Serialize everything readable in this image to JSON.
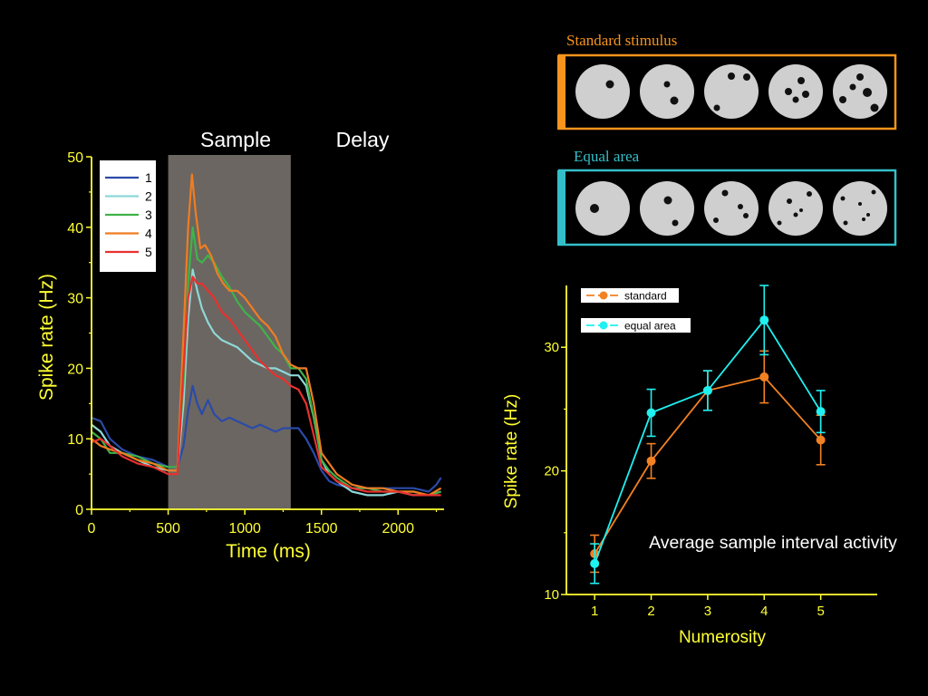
{
  "colors": {
    "background": "#000000",
    "axis": "#ffff33",
    "sample_shade": "#6b6661",
    "standard_border": "#f7941d",
    "equal_border": "#33bfc9",
    "disk": "#cfcfcf",
    "orange": "#f28123",
    "cyan": "#1ff0f0"
  },
  "timecourse": {
    "period_labels": {
      "sample": "Sample",
      "delay": "Delay"
    },
    "sample_window": [
      500,
      1300
    ],
    "legend": [
      "1",
      "2",
      "3",
      "4",
      "5"
    ]
  },
  "stimuli": {
    "standard_title": "Standard stimulus",
    "equal_title": "Equal area"
  },
  "annotation": "Average sample interval activity",
  "chart_data": [
    {
      "type": "line",
      "xlabel": "Time (ms)",
      "ylabel": "Spike rate (Hz)",
      "xlim": [
        0,
        2300
      ],
      "ylim": [
        0,
        50
      ],
      "x_ticks": [
        "0",
        "500",
        "1000",
        "1500",
        "2000"
      ],
      "y_ticks": [
        "0",
        "10",
        "20",
        "30",
        "40",
        "50"
      ],
      "legend_position": "top-left",
      "series": [
        {
          "name": "1",
          "color": "#2b4aa8",
          "points": [
            [
              0,
              13
            ],
            [
              60,
              12.5
            ],
            [
              120,
              10
            ],
            [
              200,
              8.5
            ],
            [
              300,
              7.5
            ],
            [
              400,
              7
            ],
            [
              500,
              6
            ],
            [
              560,
              6
            ],
            [
              600,
              9
            ],
            [
              630,
              14
            ],
            [
              660,
              17.5
            ],
            [
              690,
              15
            ],
            [
              720,
              13.5
            ],
            [
              760,
              15.5
            ],
            [
              800,
              13.5
            ],
            [
              850,
              12.5
            ],
            [
              900,
              13
            ],
            [
              950,
              12.5
            ],
            [
              1000,
              12
            ],
            [
              1050,
              11.5
            ],
            [
              1100,
              12
            ],
            [
              1150,
              11.5
            ],
            [
              1200,
              11
            ],
            [
              1250,
              11.5
            ],
            [
              1300,
              11.5
            ],
            [
              1350,
              11.5
            ],
            [
              1400,
              10
            ],
            [
              1450,
              8
            ],
            [
              1500,
              5.5
            ],
            [
              1550,
              4
            ],
            [
              1600,
              3.5
            ],
            [
              1700,
              3
            ],
            [
              1800,
              3
            ],
            [
              1900,
              3
            ],
            [
              2000,
              3
            ],
            [
              2100,
              3
            ],
            [
              2200,
              2.5
            ],
            [
              2250,
              3.5
            ],
            [
              2280,
              4.5
            ]
          ]
        },
        {
          "name": "2",
          "color": "#8ed8d8",
          "points": [
            [
              0,
              12
            ],
            [
              60,
              11
            ],
            [
              120,
              9
            ],
            [
              200,
              8
            ],
            [
              300,
              7
            ],
            [
              400,
              6
            ],
            [
              500,
              5.5
            ],
            [
              560,
              5.5
            ],
            [
              600,
              15
            ],
            [
              630,
              27
            ],
            [
              660,
              34
            ],
            [
              690,
              31
            ],
            [
              720,
              28.5
            ],
            [
              760,
              26.5
            ],
            [
              800,
              25
            ],
            [
              850,
              24
            ],
            [
              900,
              23.5
            ],
            [
              950,
              23
            ],
            [
              1000,
              22
            ],
            [
              1050,
              21
            ],
            [
              1100,
              20.5
            ],
            [
              1150,
              20
            ],
            [
              1200,
              20
            ],
            [
              1250,
              19.5
            ],
            [
              1300,
              19
            ],
            [
              1350,
              19
            ],
            [
              1400,
              17.5
            ],
            [
              1450,
              13
            ],
            [
              1500,
              7
            ],
            [
              1550,
              5
            ],
            [
              1600,
              4
            ],
            [
              1700,
              2.5
            ],
            [
              1800,
              2
            ],
            [
              1900,
              2
            ],
            [
              2000,
              2.5
            ],
            [
              2100,
              2
            ],
            [
              2200,
              2
            ],
            [
              2280,
              2.5
            ]
          ]
        },
        {
          "name": "3",
          "color": "#3fb34a",
          "points": [
            [
              0,
              11
            ],
            [
              60,
              10
            ],
            [
              120,
              8
            ],
            [
              200,
              8
            ],
            [
              300,
              7.5
            ],
            [
              400,
              6.5
            ],
            [
              500,
              6
            ],
            [
              560,
              6
            ],
            [
              600,
              18
            ],
            [
              630,
              32
            ],
            [
              660,
              40
            ],
            [
              690,
              35.5
            ],
            [
              720,
              35
            ],
            [
              760,
              36
            ],
            [
              800,
              35
            ],
            [
              850,
              33
            ],
            [
              900,
              31.5
            ],
            [
              950,
              29.5
            ],
            [
              1000,
              28
            ],
            [
              1050,
              27
            ],
            [
              1100,
              26
            ],
            [
              1150,
              24.5
            ],
            [
              1200,
              23
            ],
            [
              1250,
              22
            ],
            [
              1300,
              20
            ],
            [
              1350,
              20
            ],
            [
              1400,
              18.5
            ],
            [
              1450,
              13
            ],
            [
              1500,
              7
            ],
            [
              1550,
              5.5
            ],
            [
              1600,
              4.5
            ],
            [
              1700,
              3
            ],
            [
              1800,
              3
            ],
            [
              1900,
              2.5
            ],
            [
              2000,
              2.5
            ],
            [
              2100,
              2.5
            ],
            [
              2200,
              2
            ],
            [
              2280,
              2.5
            ]
          ]
        },
        {
          "name": "4",
          "color": "#ef7d22",
          "points": [
            [
              0,
              10
            ],
            [
              60,
              9
            ],
            [
              120,
              8.5
            ],
            [
              200,
              8
            ],
            [
              300,
              7
            ],
            [
              400,
              6.5
            ],
            [
              500,
              5.5
            ],
            [
              560,
              5.5
            ],
            [
              600,
              25
            ],
            [
              630,
              40
            ],
            [
              655,
              47.5
            ],
            [
              680,
              42
            ],
            [
              710,
              37
            ],
            [
              740,
              37.5
            ],
            [
              780,
              36
            ],
            [
              820,
              33.5
            ],
            [
              860,
              32
            ],
            [
              900,
              31
            ],
            [
              950,
              31
            ],
            [
              1000,
              30
            ],
            [
              1050,
              28.5
            ],
            [
              1100,
              27
            ],
            [
              1150,
              26
            ],
            [
              1200,
              24.5
            ],
            [
              1250,
              22
            ],
            [
              1300,
              20.5
            ],
            [
              1350,
              20
            ],
            [
              1400,
              20
            ],
            [
              1450,
              15
            ],
            [
              1500,
              8
            ],
            [
              1550,
              6.5
            ],
            [
              1600,
              5
            ],
            [
              1700,
              3.5
            ],
            [
              1800,
              3
            ],
            [
              1900,
              3
            ],
            [
              2000,
              2.5
            ],
            [
              2100,
              2.5
            ],
            [
              2200,
              2
            ],
            [
              2280,
              3
            ]
          ]
        },
        {
          "name": "5",
          "color": "#e8312f",
          "points": [
            [
              0,
              9.5
            ],
            [
              60,
              10
            ],
            [
              120,
              9
            ],
            [
              200,
              7.5
            ],
            [
              300,
              6.5
            ],
            [
              400,
              6
            ],
            [
              500,
              5
            ],
            [
              560,
              5
            ],
            [
              600,
              20
            ],
            [
              630,
              30
            ],
            [
              660,
              33
            ],
            [
              690,
              32
            ],
            [
              720,
              32
            ],
            [
              760,
              31
            ],
            [
              800,
              30
            ],
            [
              850,
              28
            ],
            [
              900,
              27
            ],
            [
              950,
              25.5
            ],
            [
              1000,
              24
            ],
            [
              1050,
              22.5
            ],
            [
              1100,
              21
            ],
            [
              1150,
              20
            ],
            [
              1200,
              19
            ],
            [
              1250,
              18.5
            ],
            [
              1300,
              17.5
            ],
            [
              1350,
              17
            ],
            [
              1400,
              15
            ],
            [
              1450,
              10.5
            ],
            [
              1500,
              6
            ],
            [
              1550,
              5
            ],
            [
              1600,
              4
            ],
            [
              1700,
              3
            ],
            [
              1800,
              2.5
            ],
            [
              1900,
              2.5
            ],
            [
              2000,
              2.5
            ],
            [
              2100,
              2
            ],
            [
              2200,
              2
            ],
            [
              2280,
              2
            ]
          ]
        }
      ]
    },
    {
      "type": "line",
      "xlabel": "Numerosity",
      "ylabel": "Spike rate (Hz)",
      "xlim": [
        0.5,
        6
      ],
      "ylim": [
        10,
        35
      ],
      "x_ticks": [
        "1",
        "2",
        "3",
        "4",
        "5"
      ],
      "y_ticks": [
        "10",
        "20",
        "30"
      ],
      "legend_position": "top-left",
      "series": [
        {
          "name": "standard",
          "color": "#f28123",
          "x": [
            1,
            2,
            3,
            4,
            5
          ],
          "values": [
            13.3,
            20.8,
            26.5,
            27.6,
            22.5
          ],
          "errors": [
            1.5,
            1.4,
            1.6,
            2.1,
            2.0
          ]
        },
        {
          "name": "equal area",
          "color": "#1ff0f0",
          "x": [
            1,
            2,
            3,
            4,
            5
          ],
          "values": [
            12.5,
            24.7,
            26.5,
            32.2,
            24.8
          ],
          "errors": [
            1.6,
            1.9,
            1.6,
            2.8,
            1.7
          ]
        }
      ]
    }
  ]
}
